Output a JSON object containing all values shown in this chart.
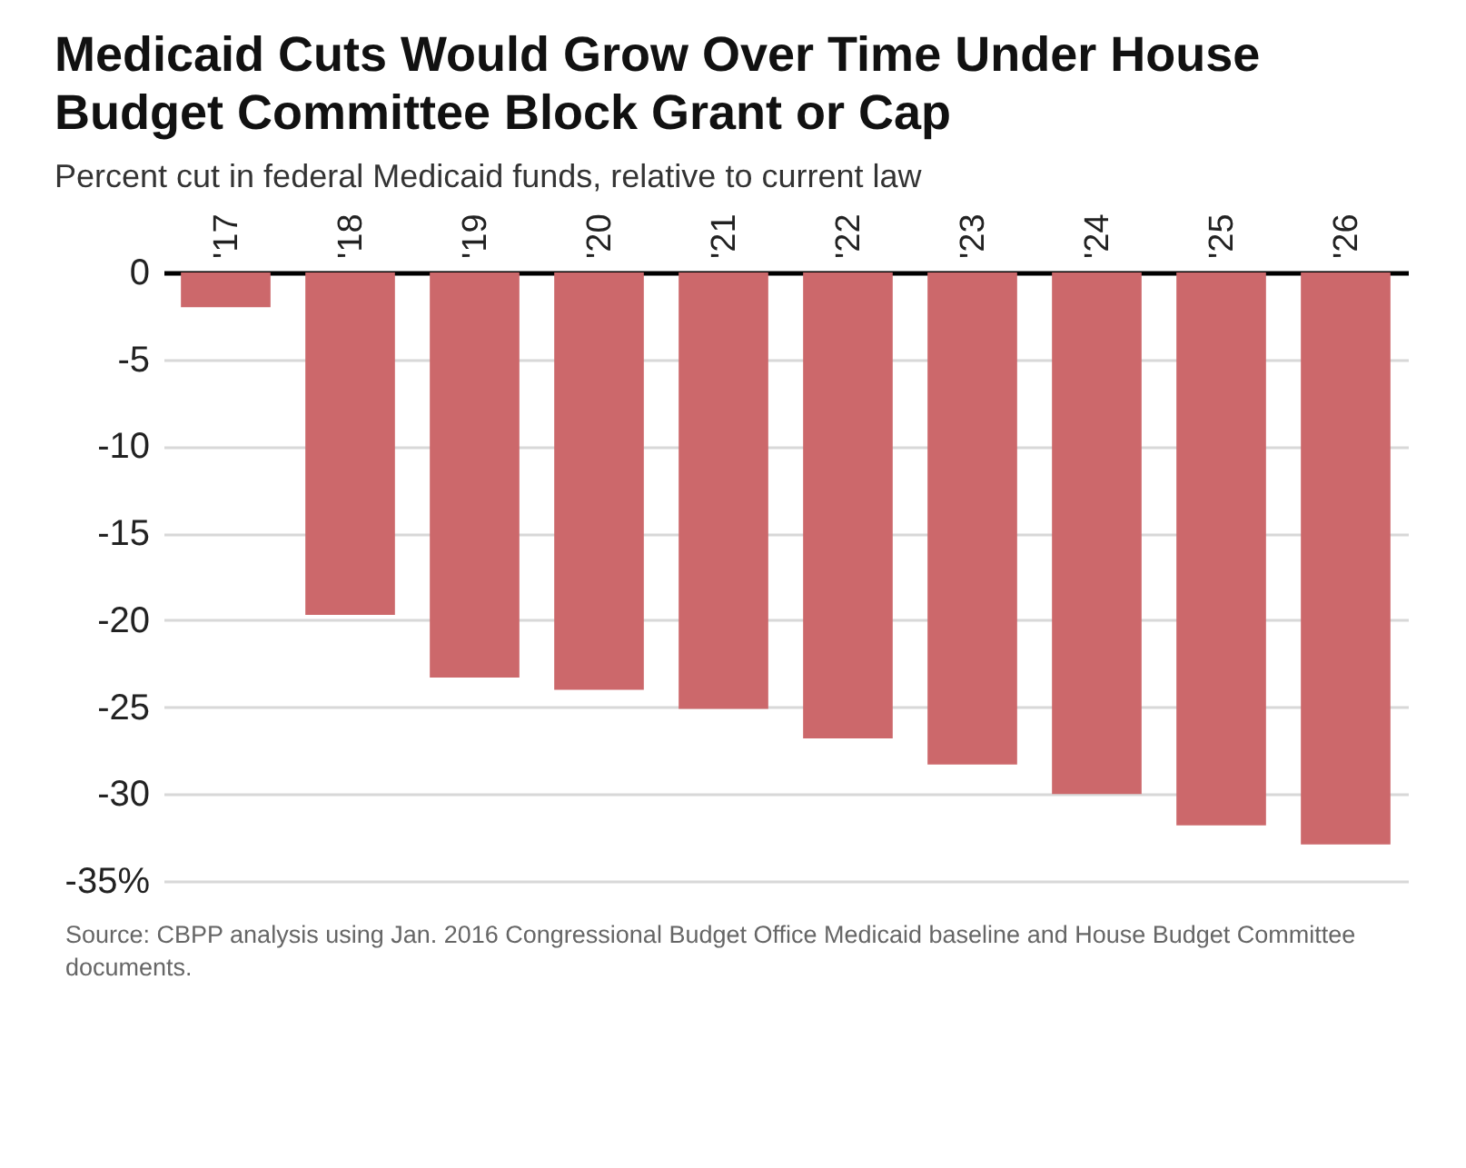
{
  "chart_data": {
    "type": "bar",
    "title": "Medicaid Cuts Would Grow Over Time Under House Budget Committee Block Grant or Cap",
    "subtitle": "Percent cut in federal Medicaid funds, relative to current law",
    "categories": [
      "'17",
      "'18",
      "'19",
      "'20",
      "'21",
      "'22",
      "'23",
      "'24",
      "'25",
      "'26"
    ],
    "values": [
      -2.0,
      -19.7,
      -23.3,
      -24.0,
      -25.1,
      -26.8,
      -28.3,
      -30.0,
      -31.8,
      -32.9
    ],
    "color": "#cc686b",
    "ylim": [
      -35,
      0
    ],
    "yticks": [
      0,
      -5,
      -10,
      -15,
      -20,
      -25,
      -30,
      {
        "value": -35,
        "label": "-35%"
      }
    ],
    "grid": "y",
    "annotations": [
      "Source: CBPP analysis using Jan. 2016 Congressional Budget Office Medicaid baseline and House Budget Committee documents."
    ]
  }
}
